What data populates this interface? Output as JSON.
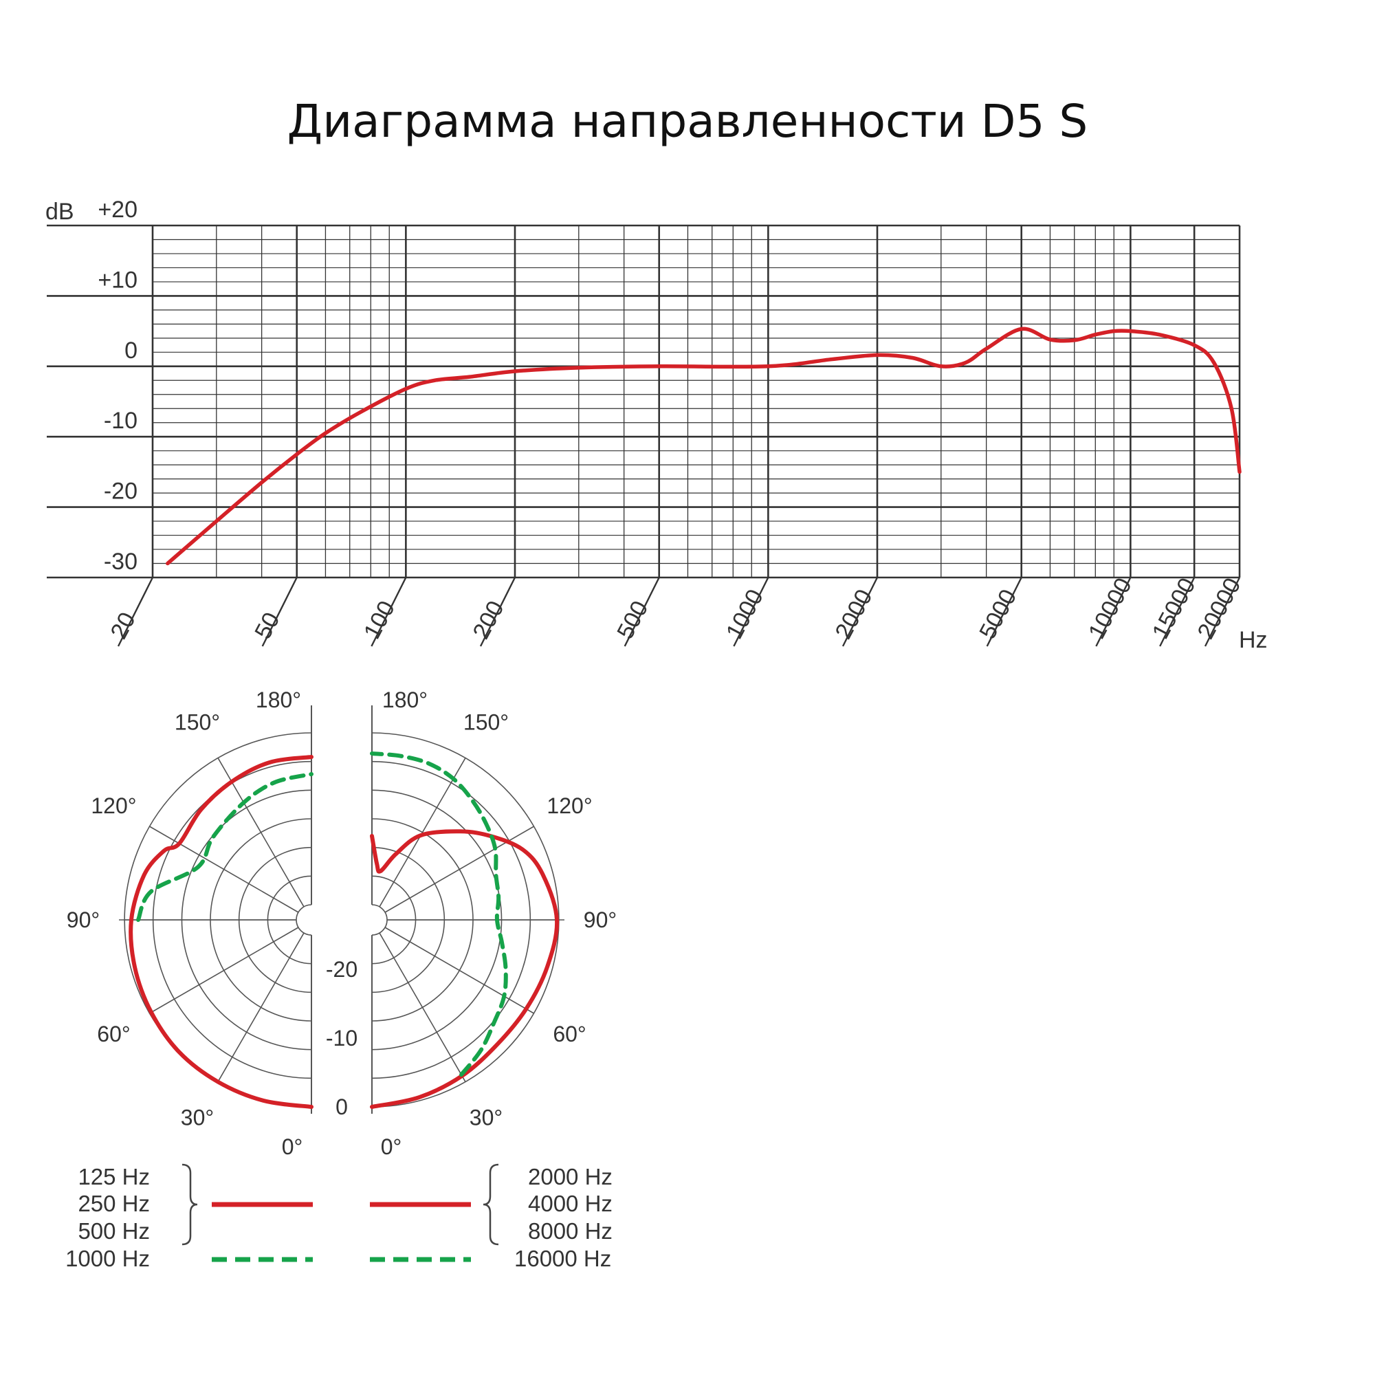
{
  "title": "Диаграмма направленности D5 S",
  "colors": {
    "curve": "#d42127",
    "curve_hf": "#16a34a",
    "grid": "#333333"
  },
  "chart_data": [
    {
      "type": "line",
      "title": "",
      "ylabel": "dB",
      "xlabel": "Hz",
      "x_scale": "log",
      "xlim": [
        20,
        20000
      ],
      "ylim": [
        -30,
        20
      ],
      "y_ticks": [
        "+20",
        "+10",
        "0",
        "-10",
        "-20",
        "-30"
      ],
      "x_ticks": [
        "20",
        "50",
        "100",
        "200",
        "500",
        "1000",
        "2000",
        "5000",
        "10000",
        "15000",
        "20000"
      ],
      "grid": true,
      "series": [
        {
          "x": [
            22,
            30,
            40,
            50,
            60,
            75,
            100,
            120,
            150,
            200,
            300,
            500,
            1000,
            1500,
            2000,
            2500,
            3000,
            3500,
            4000,
            5000,
            6000,
            7000,
            8000,
            9000,
            10000,
            12000,
            15000,
            17000,
            19000,
            20000
          ],
          "y": [
            -28,
            -22,
            -16.5,
            -12.5,
            -9.5,
            -6.5,
            -3.2,
            -2,
            -1.5,
            -0.7,
            -0.2,
            0,
            0,
            1,
            1.6,
            1.2,
            0,
            0.5,
            2.5,
            5.3,
            3.8,
            3.7,
            4.5,
            5,
            5,
            4.5,
            3,
            0.5,
            -6,
            -15
          ]
        }
      ]
    },
    {
      "type": "polar",
      "title": "",
      "angle_labels": [
        "180°",
        "150°",
        "120°",
        "90°",
        "60°",
        "30°",
        "0°"
      ],
      "r_labels": [
        "-20",
        "-10",
        "0"
      ],
      "rlim": [
        -25,
        0
      ],
      "series": [
        {
          "name": "125 Hz / 250 Hz / 500 Hz",
          "side": "left",
          "style": "solid",
          "angles": [
            0,
            15,
            30,
            45,
            60,
            75,
            90,
            105,
            115,
            120,
            135,
            150,
            165,
            180
          ],
          "db": [
            0,
            0,
            0,
            0,
            -0.3,
            -0.6,
            -1,
            -2,
            -3.5,
            -5,
            -4.5,
            -4,
            -3.5,
            -3.5
          ]
        },
        {
          "name": "1000 Hz",
          "side": "left",
          "style": "dashed",
          "angles": [
            90,
            100,
            115,
            130,
            150,
            165,
            180
          ],
          "db": [
            -2,
            -3.5,
            -9,
            -8.5,
            -7.5,
            -6.5,
            -6
          ]
        },
        {
          "name": "2000 Hz / 4000 Hz / 8000 Hz",
          "side": "right",
          "style": "solid",
          "angles": [
            0,
            15,
            30,
            45,
            60,
            75,
            90,
            105,
            115,
            125,
            135,
            150,
            160,
            170,
            175,
            180
          ],
          "db": [
            0,
            -0.5,
            -1,
            -1.5,
            -1.3,
            -0.8,
            -0.3,
            -1.5,
            -3,
            -6,
            -9,
            -13,
            -17,
            -20,
            -19,
            -15
          ]
        },
        {
          "name": "16000 Hz",
          "side": "right",
          "style": "dashed",
          "angles": [
            30,
            40,
            50,
            60,
            70,
            80,
            90,
            100,
            110,
            120,
            130,
            140,
            150,
            160,
            170,
            180
          ],
          "db": [
            -1.2,
            -2.5,
            -4,
            -5,
            -6.5,
            -8,
            -9,
            -8.5,
            -8,
            -6.5,
            -5.5,
            -4.5,
            -3.5,
            -3,
            -3,
            -3
          ]
        }
      ]
    }
  ],
  "legend": {
    "left_group": [
      "125 Hz",
      "250 Hz",
      "500 Hz"
    ],
    "left_dashed": "1000 Hz",
    "right_group": [
      "2000 Hz",
      "4000 Hz",
      "8000 Hz"
    ],
    "right_dashed": "16000 Hz"
  }
}
